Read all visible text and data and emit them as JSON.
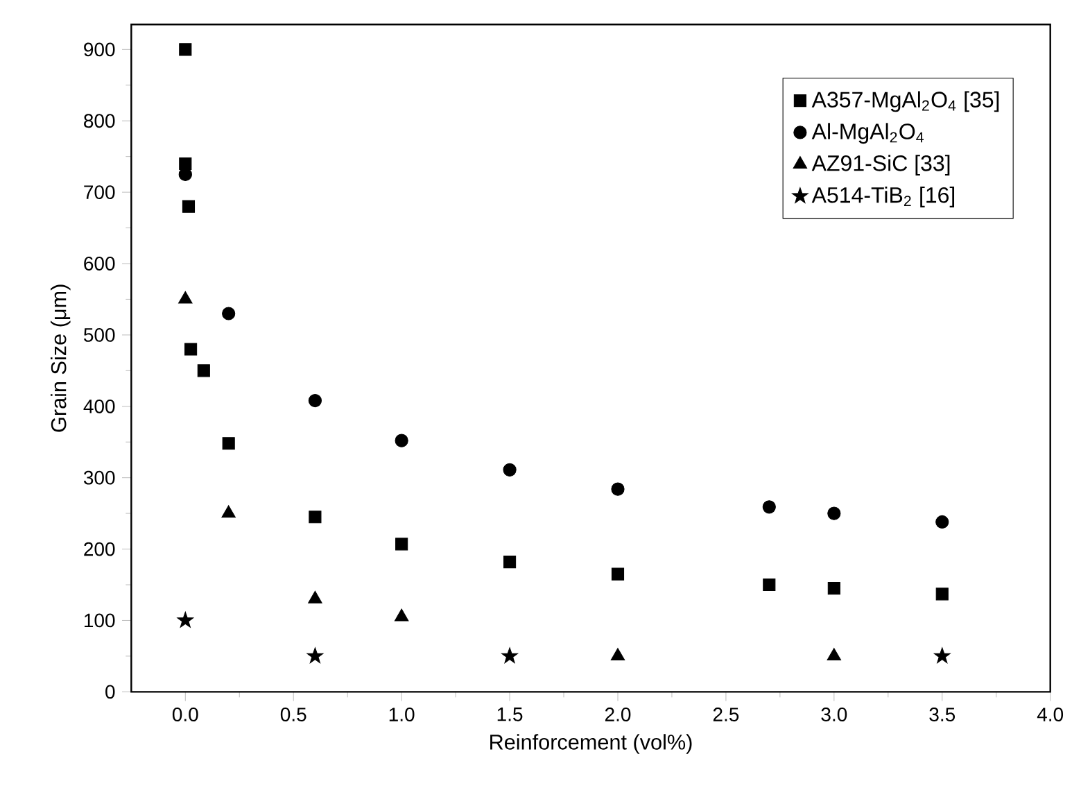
{
  "chart_data": {
    "type": "scatter",
    "xlabel": "Reinforcement (vol%)",
    "ylabel": "Grain Size (μm)",
    "xlim": [
      -0.25,
      4.0
    ],
    "xticks": [
      {
        "value": 0,
        "label": "0.0"
      },
      {
        "value": 0.5,
        "label": "0.5"
      },
      {
        "value": 1,
        "label": "1.0"
      },
      {
        "value": 1.5,
        "label": "1.5"
      },
      {
        "value": 2,
        "label": "2.0"
      },
      {
        "value": 2.5,
        "label": "2.5"
      },
      {
        "value": 3,
        "label": "3.0"
      },
      {
        "value": 3.5,
        "label": "3.5"
      },
      {
        "value": 4,
        "label": "4.0"
      }
    ],
    "ylim": [
      0,
      935
    ],
    "yticks": [
      0,
      100,
      200,
      300,
      400,
      500,
      600,
      700,
      800,
      900
    ],
    "legend": "top right",
    "grid": false,
    "series": [
      {
        "name": "A357-MgAl$_{2}$O$_{4}$ [35]",
        "color": "#000000",
        "marker": "square",
        "x": [
          0,
          0,
          0.015,
          0.025,
          0.085,
          0.2,
          0.6,
          1.0,
          1.5,
          2.0,
          2.7,
          3.0,
          3.5
        ],
        "values": [
          900,
          740,
          680,
          480,
          450,
          348,
          245,
          207,
          182,
          165,
          150,
          145,
          137
        ]
      },
      {
        "name": "Al-MgAl$_{2}$O$_{4}$",
        "color": "#000000",
        "marker": "circle",
        "x": [
          0,
          0.2,
          0.6,
          1.0,
          1.5,
          2.0,
          2.7,
          3.0,
          3.5
        ],
        "values": [
          725,
          530,
          408,
          352,
          311,
          284,
          259,
          250,
          238
        ]
      },
      {
        "name": "AZ91-SiC [33]",
        "color": "#000000",
        "marker": "triangle",
        "x": [
          0,
          0.2,
          0.6,
          1.0,
          2.0,
          3.0
        ],
        "values": [
          550,
          250,
          130,
          105,
          50,
          50
        ]
      },
      {
        "name": "A514-TiB$_{2}$ [16]",
        "color": "#000000",
        "marker": "star",
        "x": [
          0,
          0.6,
          1.5,
          3.5
        ],
        "values": [
          100,
          50,
          50,
          50
        ]
      }
    ]
  }
}
